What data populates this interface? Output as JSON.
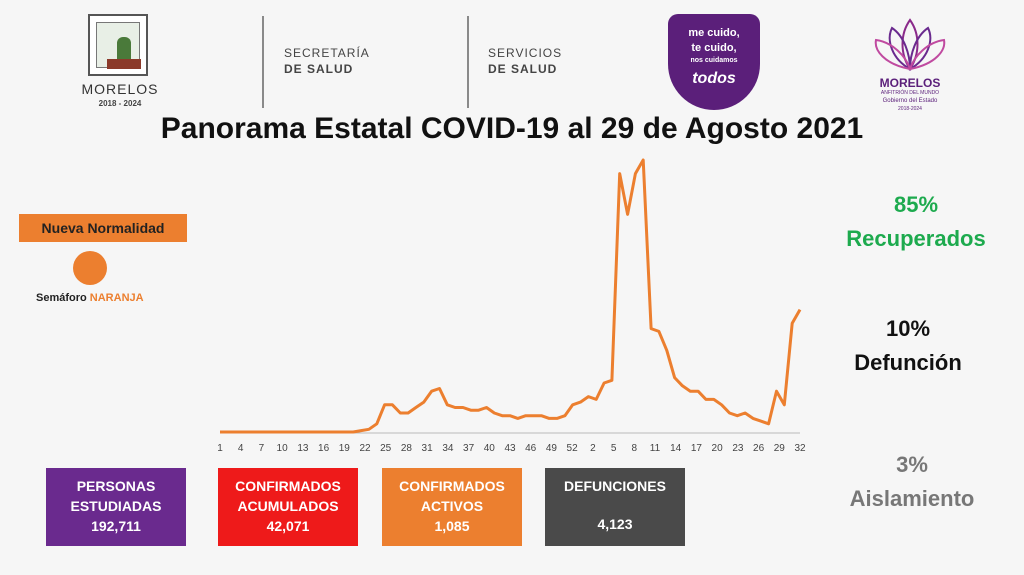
{
  "header": {
    "org_name": "MORELOS",
    "org_years": "2018 - 2024",
    "dept1": {
      "line1": "SECRETARÍA",
      "line2": "DE SALUD"
    },
    "dept2": {
      "line1": "SERVICIOS",
      "line2": "DE SALUD"
    },
    "campaign": {
      "l1": "me cuido,",
      "l2": "te cuido,",
      "l3": "nos cuidamos",
      "l4": "todos"
    },
    "brand": {
      "name": "MORELOS",
      "tag": "ANFITRIÓN DEL MUNDO",
      "sub": "Gobierno del Estado",
      "years": "2018-2024"
    },
    "colors": {
      "purple": "#5b1f7a",
      "orange": "#ec7f2f"
    }
  },
  "title": "Panorama Estatal COVID-19 al 29 de Agosto 2021",
  "phase": {
    "label": "Nueva Normalidad",
    "semaforo_prefix": "Semáforo ",
    "semaforo_color": "NARANJA"
  },
  "stats": {
    "recuperados_pct": "85%",
    "recuperados_label": "Recuperados",
    "defuncion_pct": "10%",
    "defuncion_label": "Defunción",
    "aislamiento_pct": "3%",
    "aislamiento_label": "Aislamiento"
  },
  "boxes": {
    "estudiadas": {
      "t1": "PERSONAS",
      "t2": "ESTUDIADAS",
      "value": "192,711",
      "color": "#6a2a8e"
    },
    "acumulados": {
      "t1": "CONFIRMADOS",
      "t2": "ACUMULADOS",
      "value": "42,071",
      "color": "#ee1a1a"
    },
    "activos": {
      "t1": "CONFIRMADOS",
      "t2": "ACTIVOS",
      "value": "1,085",
      "color": "#ec7f2f"
    },
    "defunciones": {
      "t1": "DEFUNCIONES",
      "t2": "",
      "value": "4,123",
      "color": "#4a4a4a"
    }
  },
  "chart_data": {
    "type": "line",
    "color": "#ec7f2f",
    "xlabel": "",
    "ylabel": "",
    "grid": false,
    "tick_labels": [
      "1",
      "4",
      "7",
      "10",
      "13",
      "16",
      "19",
      "22",
      "25",
      "28",
      "31",
      "34",
      "37",
      "40",
      "43",
      "46",
      "49",
      "52",
      "2",
      "5",
      "8",
      "11",
      "14",
      "17",
      "20",
      "23",
      "26",
      "29",
      "32"
    ],
    "ylim": [
      0,
      100
    ],
    "values": [
      0,
      0,
      0,
      0,
      0,
      0,
      0,
      0,
      0,
      0,
      0,
      0,
      0,
      0,
      0,
      0,
      0,
      0,
      0.5,
      1,
      3,
      10,
      10,
      7,
      7,
      9,
      11,
      15,
      16,
      10,
      9,
      9,
      8,
      8,
      9,
      7,
      6,
      6,
      5,
      6,
      6,
      6,
      5,
      5,
      6,
      10,
      11,
      13,
      12,
      18,
      19,
      95,
      80,
      95,
      100,
      38,
      37,
      30,
      20,
      17,
      15,
      15,
      12,
      12,
      10,
      7,
      6,
      7,
      5,
      4,
      3,
      15,
      10,
      40,
      45
    ]
  }
}
